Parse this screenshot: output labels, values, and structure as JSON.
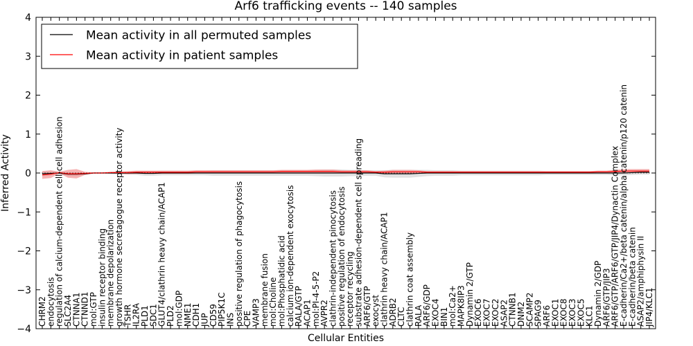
{
  "chart_data": {
    "type": "line",
    "title": "Arf6 trafficking events -- 140 samples",
    "xlabel": "Cellular Entities",
    "ylabel": "Inferred Activity",
    "ylim": [
      -4,
      4
    ],
    "yticks": [
      -4,
      -3,
      -2,
      -1,
      0,
      1,
      2,
      3,
      4
    ],
    "ytick_labels": [
      "−4",
      "−3",
      "−2",
      "−1",
      "0",
      "1",
      "2",
      "3",
      "4"
    ],
    "legend_position": "top-left",
    "categories": [
      "CHRM2",
      "endocytosis",
      "regulation of calcium-dependent cell-cell adhesion",
      "SLC2A4",
      "CTNNA1",
      "CTNND1",
      "mol:GTP",
      "insulin receptor binding",
      "membrane depolarization",
      "growth hormone secretagogue receptor activity",
      "TSHR",
      "IL2RA",
      "PLD1",
      "SDC1",
      "GLUT4/clathrin heavy chain/ACAP1",
      "PLD2",
      "mol:GDP",
      "NME1",
      "CDH1",
      "JUP",
      "CD59",
      "PIP5K1C",
      "INS",
      "positive regulation of phagocytosis",
      "CPE",
      "VAMP3",
      "membrane fusion",
      "mol:Choline",
      "mol:Phosphatidic acid",
      "calcium ion-dependent exocytosis",
      "RALA/GTP",
      "ACAP1",
      "mol:PI-4-5-P2",
      "AVPR2",
      "clathrin-independent pinocytosis",
      "positive regulation of endocytosis",
      "receptor recycling",
      "substrate adhesion-dependent cell spreading",
      "ARF6/GTP",
      "exocyst",
      "clathrin heavy chain/ACAP1",
      "ADRB2",
      "CLTC",
      "clathrin coat assembly",
      "RALA",
      "ARF6/GDP",
      "EXOC4",
      "BIN1",
      "mol:Ca2+",
      "MAPK8IP3",
      "Dynamin 2/GTP",
      "EXOC6",
      "EXOC7",
      "EXOC2",
      "ASAP2",
      "CTNNB1",
      "DNM2",
      "SCAMP2",
      "SPAG9",
      "ARF6",
      "EXOC1",
      "EXOC8",
      "EXOC3",
      "EXOC5",
      "KLC1",
      "Dynamin 2/GDP",
      "ARF6/GTP/JIP3",
      "ARF6/GTP/ARF6/GTP/JIP4/Dynactin Complex",
      "E-cadherin/Ca2+/beta catenin/alpha catenin/p120 catenin",
      "E-cadherin/beta catenin",
      "ASAP2/amphiphysin II",
      "JIP4/KLC1"
    ],
    "series": [
      {
        "name": "Mean activity in all permuted samples",
        "color": "#000000",
        "values": [
          -0.02,
          -0.01,
          0.0,
          -0.03,
          -0.03,
          -0.02,
          0.0,
          0.0,
          0.0,
          0.0,
          0.0,
          0.0,
          -0.01,
          -0.01,
          0.0,
          0.0,
          0.0,
          0.0,
          0.0,
          0.0,
          0.0,
          0.0,
          0.0,
          0.0,
          0.0,
          0.0,
          0.0,
          0.0,
          0.0,
          0.0,
          0.0,
          0.0,
          0.0,
          0.0,
          0.0,
          0.0,
          0.0,
          0.0,
          0.0,
          0.0,
          -0.02,
          -0.02,
          -0.02,
          -0.02,
          -0.01,
          0.0,
          0.0,
          0.0,
          0.0,
          0.0,
          0.0,
          0.0,
          0.0,
          0.0,
          0.0,
          0.0,
          0.0,
          0.0,
          0.0,
          0.0,
          0.0,
          0.0,
          0.0,
          0.0,
          0.0,
          0.0,
          0.0,
          0.0,
          0.0,
          0.01,
          0.02,
          0.02
        ],
        "spread": [
          0.06,
          0.05,
          0.03,
          0.05,
          0.05,
          0.03,
          0.02,
          0.02,
          0.03,
          0.03,
          0.04,
          0.05,
          0.06,
          0.06,
          0.06,
          0.06,
          0.06,
          0.06,
          0.06,
          0.06,
          0.07,
          0.07,
          0.07,
          0.07,
          0.07,
          0.07,
          0.07,
          0.07,
          0.07,
          0.07,
          0.07,
          0.07,
          0.08,
          0.09,
          0.09,
          0.09,
          0.08,
          0.08,
          0.07,
          0.07,
          0.09,
          0.1,
          0.1,
          0.1,
          0.09,
          0.08,
          0.07,
          0.07,
          0.07,
          0.06,
          0.06,
          0.06,
          0.06,
          0.06,
          0.06,
          0.06,
          0.06,
          0.06,
          0.06,
          0.05,
          0.05,
          0.05,
          0.05,
          0.05,
          0.05,
          0.05,
          0.05,
          0.06,
          0.06,
          0.06,
          0.06,
          0.06
        ]
      },
      {
        "name": "Mean activity in patient samples",
        "color": "#ff0000",
        "band_color": "#f08080",
        "values": [
          -0.05,
          -0.03,
          0.01,
          -0.02,
          -0.02,
          -0.01,
          0.0,
          0.0,
          0.01,
          0.01,
          0.01,
          0.02,
          0.02,
          0.02,
          0.02,
          0.02,
          0.02,
          0.02,
          0.03,
          0.03,
          0.03,
          0.03,
          0.03,
          0.03,
          0.03,
          0.03,
          0.03,
          0.03,
          0.04,
          0.04,
          0.04,
          0.04,
          0.04,
          0.04,
          0.04,
          0.03,
          0.03,
          0.03,
          0.03,
          0.02,
          0.02,
          0.03,
          0.03,
          0.03,
          0.03,
          0.02,
          0.02,
          0.02,
          0.02,
          0.02,
          0.02,
          0.02,
          0.02,
          0.02,
          0.02,
          0.02,
          0.02,
          0.02,
          0.02,
          0.02,
          0.02,
          0.02,
          0.02,
          0.02,
          0.02,
          0.03,
          0.03,
          0.04,
          0.05,
          0.05,
          0.05,
          0.05
        ],
        "spread": [
          0.1,
          0.1,
          0.02,
          0.1,
          0.12,
          0.04,
          0.01,
          0.01,
          0.02,
          0.03,
          0.04,
          0.04,
          0.04,
          0.04,
          0.04,
          0.04,
          0.04,
          0.04,
          0.04,
          0.04,
          0.04,
          0.04,
          0.04,
          0.04,
          0.04,
          0.04,
          0.04,
          0.04,
          0.04,
          0.04,
          0.04,
          0.04,
          0.05,
          0.05,
          0.05,
          0.04,
          0.04,
          0.04,
          0.04,
          0.03,
          0.04,
          0.05,
          0.05,
          0.05,
          0.04,
          0.03,
          0.03,
          0.03,
          0.03,
          0.03,
          0.03,
          0.03,
          0.03,
          0.03,
          0.03,
          0.03,
          0.03,
          0.03,
          0.03,
          0.03,
          0.03,
          0.03,
          0.03,
          0.03,
          0.03,
          0.03,
          0.03,
          0.04,
          0.05,
          0.05,
          0.05,
          0.05
        ]
      }
    ]
  }
}
